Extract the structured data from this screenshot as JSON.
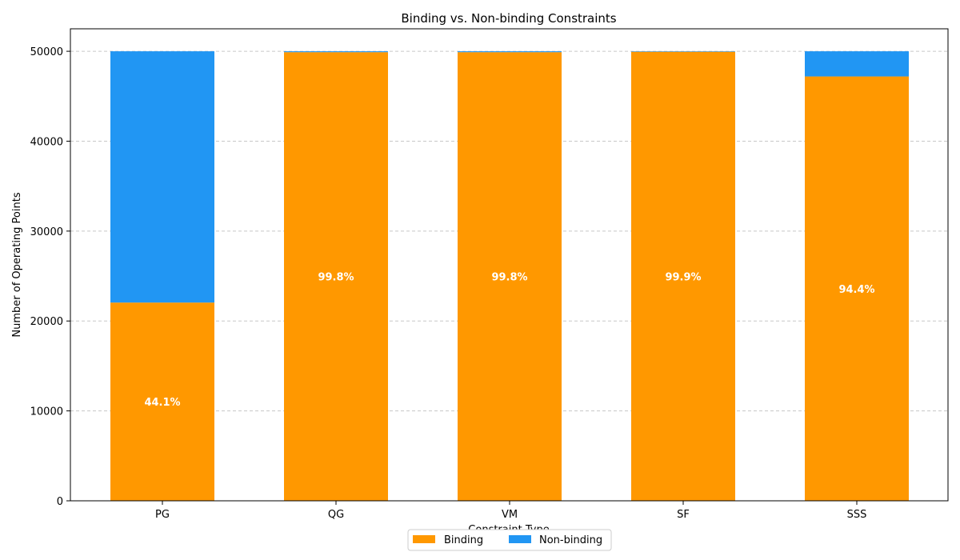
{
  "chart_data": {
    "type": "bar",
    "stacked": true,
    "title": "Binding vs. Non-binding Constraints",
    "xlabel": "Constraint Type",
    "ylabel": "Number of Operating Points",
    "categories": [
      "PG",
      "QG",
      "VM",
      "SF",
      "SSS"
    ],
    "series": [
      {
        "name": "Binding",
        "color": "#ff9800",
        "values": [
          22050,
          49900,
          49900,
          49950,
          47200
        ]
      },
      {
        "name": "Non-binding",
        "color": "#2196f3",
        "values": [
          27950,
          100,
          100,
          50,
          2800
        ]
      }
    ],
    "data_labels": [
      "44.1%",
      "99.8%",
      "99.8%",
      "99.9%",
      "94.4%"
    ],
    "ylim": [
      0,
      52500
    ],
    "yticks": [
      0,
      10000,
      20000,
      30000,
      40000,
      50000
    ],
    "grid": "y-dashed",
    "legend": "bottom-center"
  }
}
